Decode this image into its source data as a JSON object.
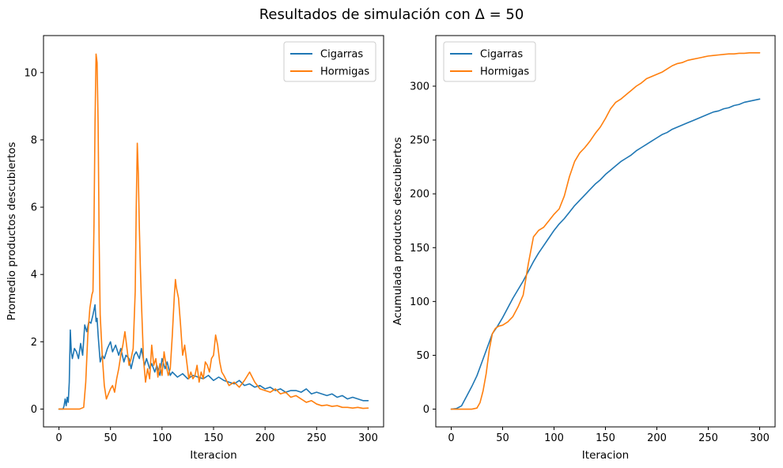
{
  "figure": {
    "suptitle": "Resultados de simulación con Δ = 50"
  },
  "chart_data": [
    {
      "type": "line",
      "xlabel": "Iteracion",
      "ylabel": "Promedio productos descubiertos",
      "xlim": [
        -15,
        315
      ],
      "ylim": [
        -0.53,
        11.1
      ],
      "xticks": [
        0,
        50,
        100,
        150,
        200,
        250,
        300
      ],
      "yticks": [
        0,
        2,
        4,
        6,
        8,
        10
      ],
      "grid": false,
      "legend_position": "top-right",
      "series": [
        {
          "name": "Cigarras",
          "color": "#1f77b4",
          "x": [
            0,
            4,
            5,
            6,
            7,
            8,
            9,
            10,
            11,
            12,
            13,
            15,
            17,
            19,
            21,
            23,
            25,
            27,
            29,
            31,
            33,
            35,
            36,
            37,
            38,
            40,
            42,
            44,
            47,
            50,
            52,
            55,
            58,
            60,
            63,
            65,
            68,
            70,
            73,
            75,
            78,
            80,
            83,
            85,
            88,
            90,
            93,
            95,
            98,
            100,
            103,
            105,
            108,
            110,
            115,
            120,
            125,
            130,
            135,
            140,
            145,
            150,
            155,
            160,
            165,
            170,
            175,
            180,
            185,
            190,
            195,
            200,
            205,
            210,
            215,
            220,
            225,
            230,
            235,
            240,
            245,
            250,
            255,
            260,
            265,
            270,
            275,
            280,
            285,
            290,
            295,
            300
          ],
          "y": [
            0,
            0,
            0.1,
            0.3,
            0.1,
            0.35,
            0.2,
            0.8,
            2.35,
            1.7,
            1.5,
            1.8,
            1.7,
            1.5,
            1.95,
            1.6,
            2.5,
            2.3,
            2.6,
            2.55,
            2.8,
            3.1,
            2.6,
            2.7,
            2.2,
            1.4,
            1.6,
            1.5,
            1.8,
            2.0,
            1.7,
            1.9,
            1.6,
            1.8,
            1.4,
            1.6,
            1.5,
            1.2,
            1.6,
            1.7,
            1.5,
            1.8,
            1.3,
            1.5,
            1.2,
            1.35,
            1.1,
            1.3,
            1.0,
            1.5,
            1.2,
            1.4,
            1.0,
            1.1,
            0.95,
            1.05,
            0.9,
            1.0,
            0.95,
            0.9,
            1.0,
            0.85,
            0.95,
            0.85,
            0.8,
            0.75,
            0.85,
            0.7,
            0.75,
            0.65,
            0.7,
            0.6,
            0.65,
            0.55,
            0.6,
            0.5,
            0.55,
            0.55,
            0.5,
            0.6,
            0.45,
            0.5,
            0.45,
            0.4,
            0.45,
            0.35,
            0.4,
            0.3,
            0.35,
            0.3,
            0.25,
            0.25
          ]
        },
        {
          "name": "Hormigas",
          "color": "#ff7f0e",
          "x": [
            0,
            10,
            20,
            24,
            26,
            28,
            30,
            32,
            33,
            34,
            35,
            36,
            37,
            38,
            39,
            40,
            42,
            44,
            46,
            48,
            50,
            52,
            54,
            56,
            58,
            60,
            62,
            64,
            66,
            68,
            70,
            72,
            74,
            75,
            76,
            77,
            78,
            79,
            80,
            82,
            84,
            86,
            88,
            90,
            92,
            94,
            96,
            98,
            100,
            102,
            104,
            106,
            108,
            110,
            112,
            113,
            114,
            116,
            118,
            120,
            122,
            124,
            126,
            128,
            130,
            132,
            134,
            136,
            138,
            140,
            142,
            144,
            146,
            148,
            150,
            152,
            154,
            156,
            158,
            160,
            165,
            170,
            175,
            180,
            185,
            190,
            195,
            200,
            205,
            210,
            215,
            220,
            225,
            230,
            235,
            240,
            245,
            250,
            255,
            260,
            265,
            270,
            275,
            280,
            285,
            290,
            295,
            300
          ],
          "y": [
            0,
            0,
            0,
            0.05,
            0.8,
            2.2,
            3.0,
            3.4,
            3.5,
            5.5,
            8.5,
            10.55,
            10.3,
            8.5,
            5.0,
            2.8,
            1.6,
            0.7,
            0.3,
            0.45,
            0.6,
            0.7,
            0.5,
            0.9,
            1.2,
            1.6,
            1.9,
            2.3,
            1.8,
            1.3,
            1.5,
            1.8,
            3.5,
            6.0,
            7.9,
            7.0,
            5.4,
            4.2,
            3.2,
            1.5,
            0.8,
            1.2,
            0.9,
            1.9,
            1.3,
            1.5,
            0.95,
            1.35,
            1.0,
            1.7,
            1.3,
            1.0,
            1.2,
            2.2,
            3.4,
            3.85,
            3.6,
            3.3,
            2.5,
            1.6,
            1.9,
            1.4,
            0.9,
            1.1,
            0.9,
            1.0,
            1.3,
            0.8,
            1.1,
            0.9,
            1.4,
            1.3,
            1.1,
            1.5,
            1.6,
            2.2,
            1.9,
            1.4,
            1.1,
            1.0,
            0.7,
            0.8,
            0.65,
            0.85,
            1.1,
            0.8,
            0.6,
            0.55,
            0.5,
            0.6,
            0.45,
            0.5,
            0.35,
            0.4,
            0.3,
            0.2,
            0.25,
            0.15,
            0.1,
            0.12,
            0.08,
            0.1,
            0.05,
            0.05,
            0.03,
            0.05,
            0.02,
            0.03
          ]
        }
      ]
    },
    {
      "type": "line",
      "xlabel": "Iteracion",
      "ylabel": "Acumulada productos descubiertos",
      "xlim": [
        -15,
        315
      ],
      "ylim": [
        -16.5,
        347
      ],
      "xticks": [
        0,
        50,
        100,
        150,
        200,
        250,
        300
      ],
      "yticks": [
        0,
        50,
        100,
        150,
        200,
        250,
        300
      ],
      "grid": false,
      "legend_position": "top-left",
      "series": [
        {
          "name": "Cigarras",
          "color": "#1f77b4",
          "x": [
            0,
            5,
            10,
            15,
            20,
            25,
            30,
            35,
            40,
            45,
            50,
            55,
            60,
            65,
            70,
            75,
            80,
            85,
            90,
            95,
            100,
            105,
            110,
            115,
            120,
            125,
            130,
            135,
            140,
            145,
            150,
            155,
            160,
            165,
            170,
            175,
            180,
            185,
            190,
            195,
            200,
            205,
            210,
            215,
            220,
            225,
            230,
            235,
            240,
            245,
            250,
            255,
            260,
            265,
            270,
            275,
            280,
            285,
            290,
            295,
            300
          ],
          "y": [
            0,
            0.5,
            3,
            12,
            21,
            31,
            44,
            57,
            70,
            77,
            85,
            94,
            103,
            111,
            119,
            128,
            137,
            145,
            152,
            159,
            166,
            172,
            177,
            183,
            189,
            194,
            199,
            204,
            209,
            213,
            218,
            222,
            226,
            230,
            233,
            236,
            240,
            243,
            246,
            249,
            252,
            255,
            257,
            260,
            262,
            264,
            266,
            268,
            270,
            272,
            274,
            276,
            277,
            279,
            280,
            282,
            283,
            285,
            286,
            287,
            288
          ]
        },
        {
          "name": "Hormigas",
          "color": "#ff7f0e",
          "x": [
            0,
            10,
            20,
            25,
            28,
            31,
            34,
            37,
            40,
            43,
            46,
            50,
            55,
            60,
            65,
            70,
            75,
            80,
            85,
            90,
            95,
            100,
            105,
            110,
            115,
            120,
            125,
            130,
            135,
            140,
            145,
            150,
            155,
            160,
            165,
            170,
            175,
            180,
            185,
            190,
            195,
            200,
            205,
            210,
            215,
            220,
            225,
            230,
            235,
            240,
            245,
            250,
            255,
            260,
            265,
            270,
            275,
            280,
            285,
            290,
            295,
            300
          ],
          "y": [
            0,
            0,
            0,
            1,
            6,
            17,
            33,
            55,
            70,
            75,
            77,
            78,
            81,
            86,
            95,
            106,
            135,
            160,
            166,
            169,
            175,
            181,
            186,
            198,
            216,
            230,
            238,
            243,
            249,
            256,
            262,
            270,
            279,
            285,
            288,
            292,
            296,
            300,
            303,
            307,
            309,
            311,
            313,
            316,
            319,
            321,
            322,
            324,
            325,
            326,
            327,
            328,
            328.5,
            329,
            329.5,
            330,
            330,
            330.5,
            330.5,
            331,
            331,
            331
          ]
        }
      ]
    }
  ]
}
